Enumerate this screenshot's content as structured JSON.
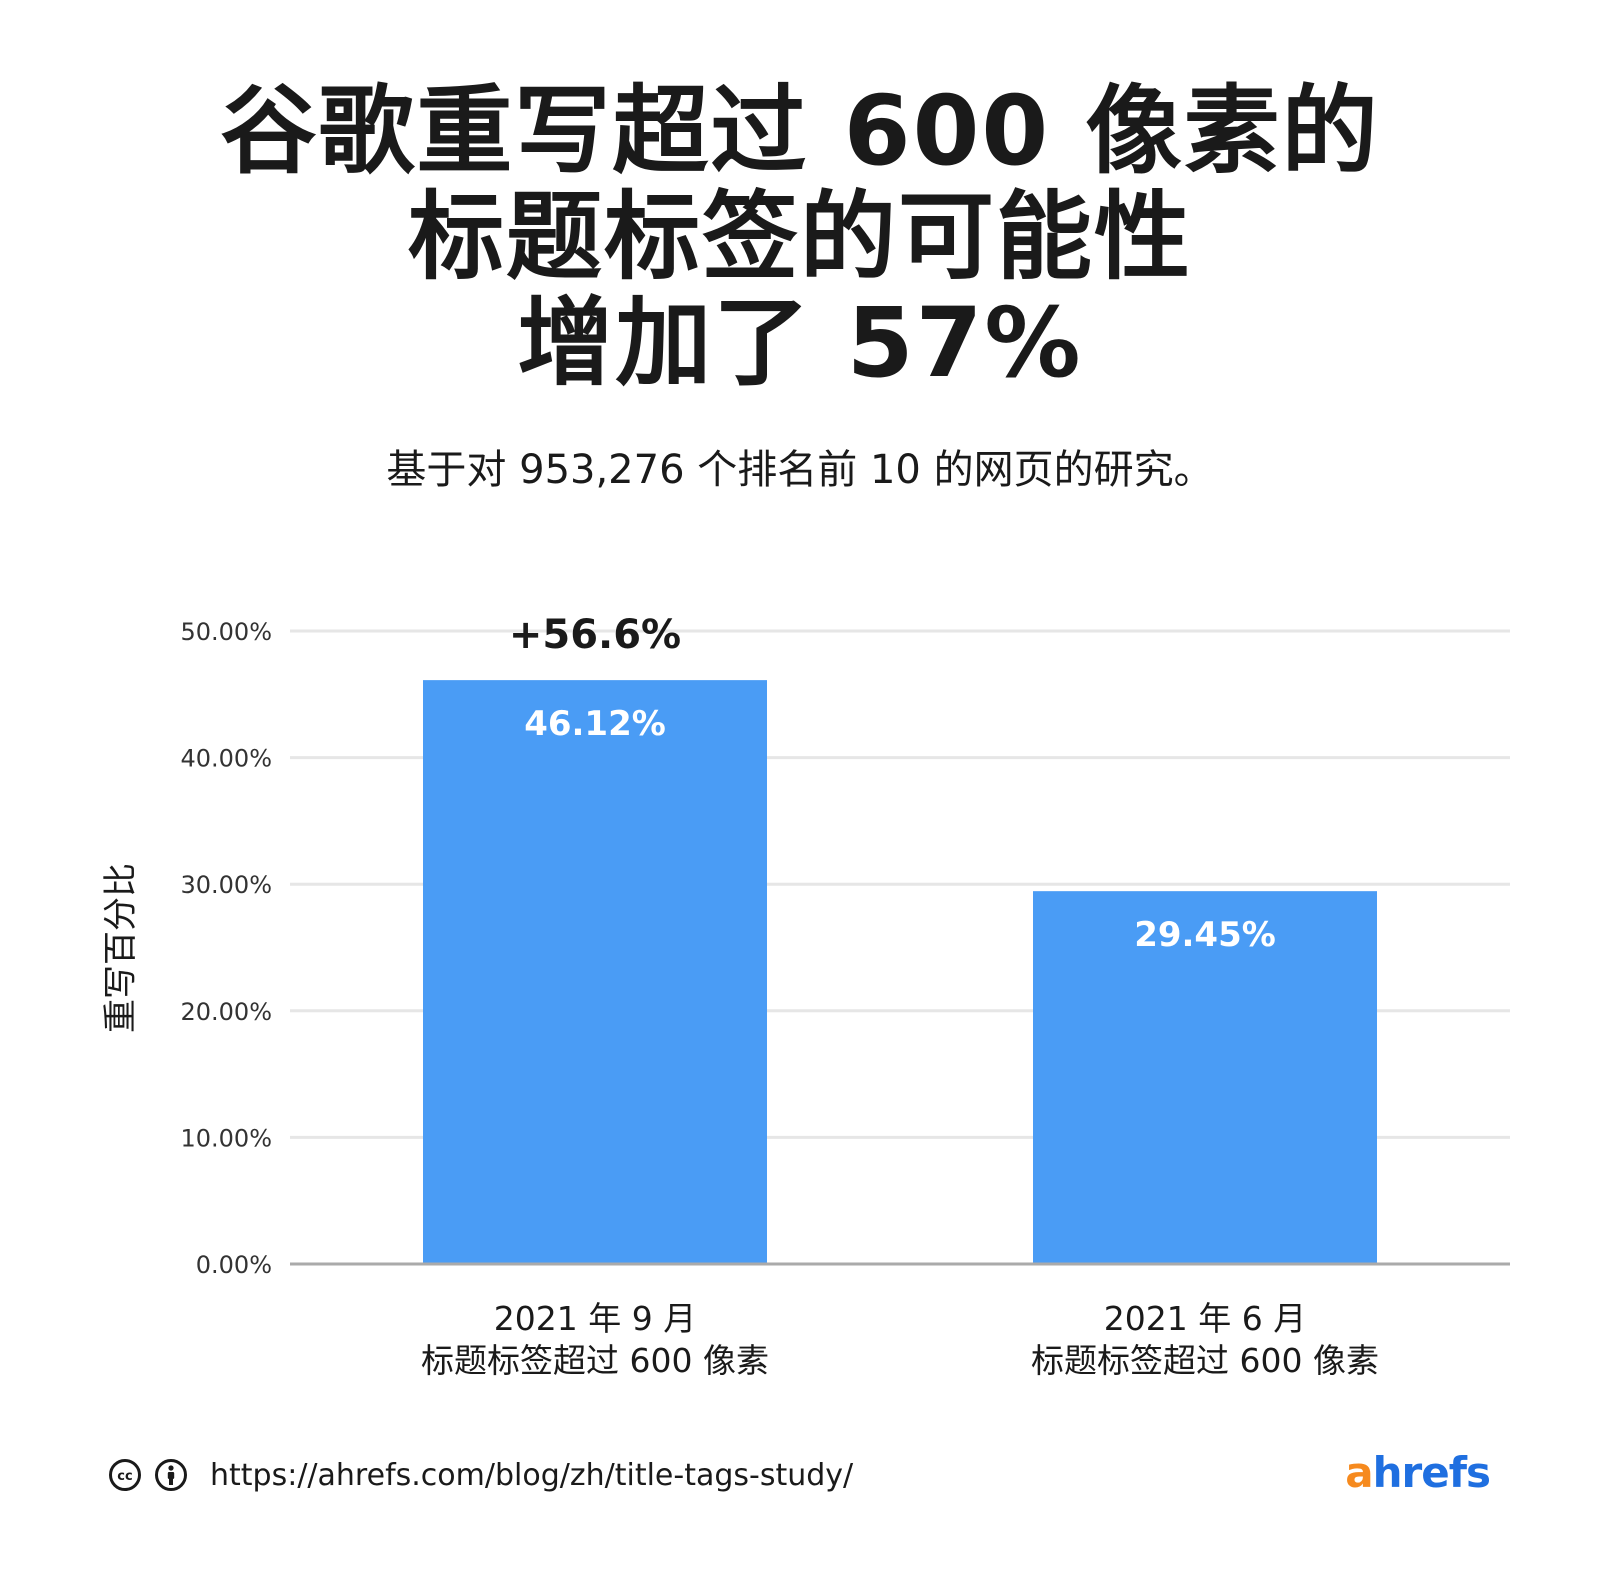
{
  "title_lines": [
    "谷歌重写超过 600 像素的",
    "标题标签的可能性",
    "增加了 57%"
  ],
  "subtitle": "基于对 953,276 个排名前 10 的网页的研究。",
  "chart_data": {
    "type": "bar",
    "categories": [
      [
        "2021 年 9 月",
        "标题标签超过 600 像素"
      ],
      [
        "2021 年 6 月",
        "标题标签超过 600 像素"
      ]
    ],
    "values": [
      46.12,
      29.45
    ],
    "data_labels": [
      "46.12%",
      "29.45%"
    ],
    "annotation": "+56.6%",
    "ylabel": "重写百分比",
    "ylim": [
      0,
      50
    ],
    "yticks": [
      "0.00%",
      "10.00%",
      "20.00%",
      "30.00%",
      "40.00%",
      "50.00%"
    ],
    "grid": true,
    "bar_color": "#4a9cf5",
    "grid_color": "#e6e6e6",
    "axis_color": "#aaaaaa"
  },
  "footer": {
    "url": "https://ahrefs.com/blog/zh/title-tags-study/",
    "cc_icon": "creative-commons-icon",
    "by_icon": "attribution-icon",
    "logo_prefix": "a",
    "logo_rest": "hrefs",
    "logo_prefix_color": "#f68a1e",
    "logo_rest_color": "#1f6fe0"
  }
}
